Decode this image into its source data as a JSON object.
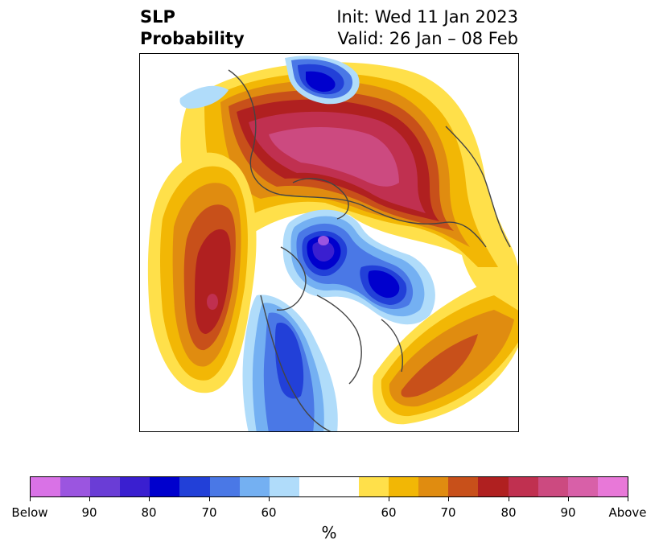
{
  "header": {
    "title_line1": "SLP",
    "title_line2": "Probability",
    "init": "Init: Wed 11 Jan 2023",
    "valid": "Valid: 26 Jan – 08 Feb"
  },
  "colorbar": {
    "unit": "%",
    "ticks": [
      "Below",
      "90",
      "80",
      "70",
      "60",
      "60",
      "70",
      "80",
      "90",
      "Above"
    ],
    "below_colors": [
      "#d972e6",
      "#9b55e0",
      "#6a3dd6",
      "#3a1fd0",
      "#0000cd",
      "#2240d8",
      "#4a78e6",
      "#74b0f2",
      "#b0dcfa"
    ],
    "neutral_color": "#ffffff",
    "above_colors": [
      "#ffe04a",
      "#f2b705",
      "#e08c10",
      "#c8501a",
      "#b02020",
      "#c03050",
      "#cc4a80",
      "#d860a8",
      "#e878d8"
    ]
  },
  "map": {
    "projection": "north-polar-stereographic",
    "background": "#ffffff",
    "border_color": "#444444"
  }
}
